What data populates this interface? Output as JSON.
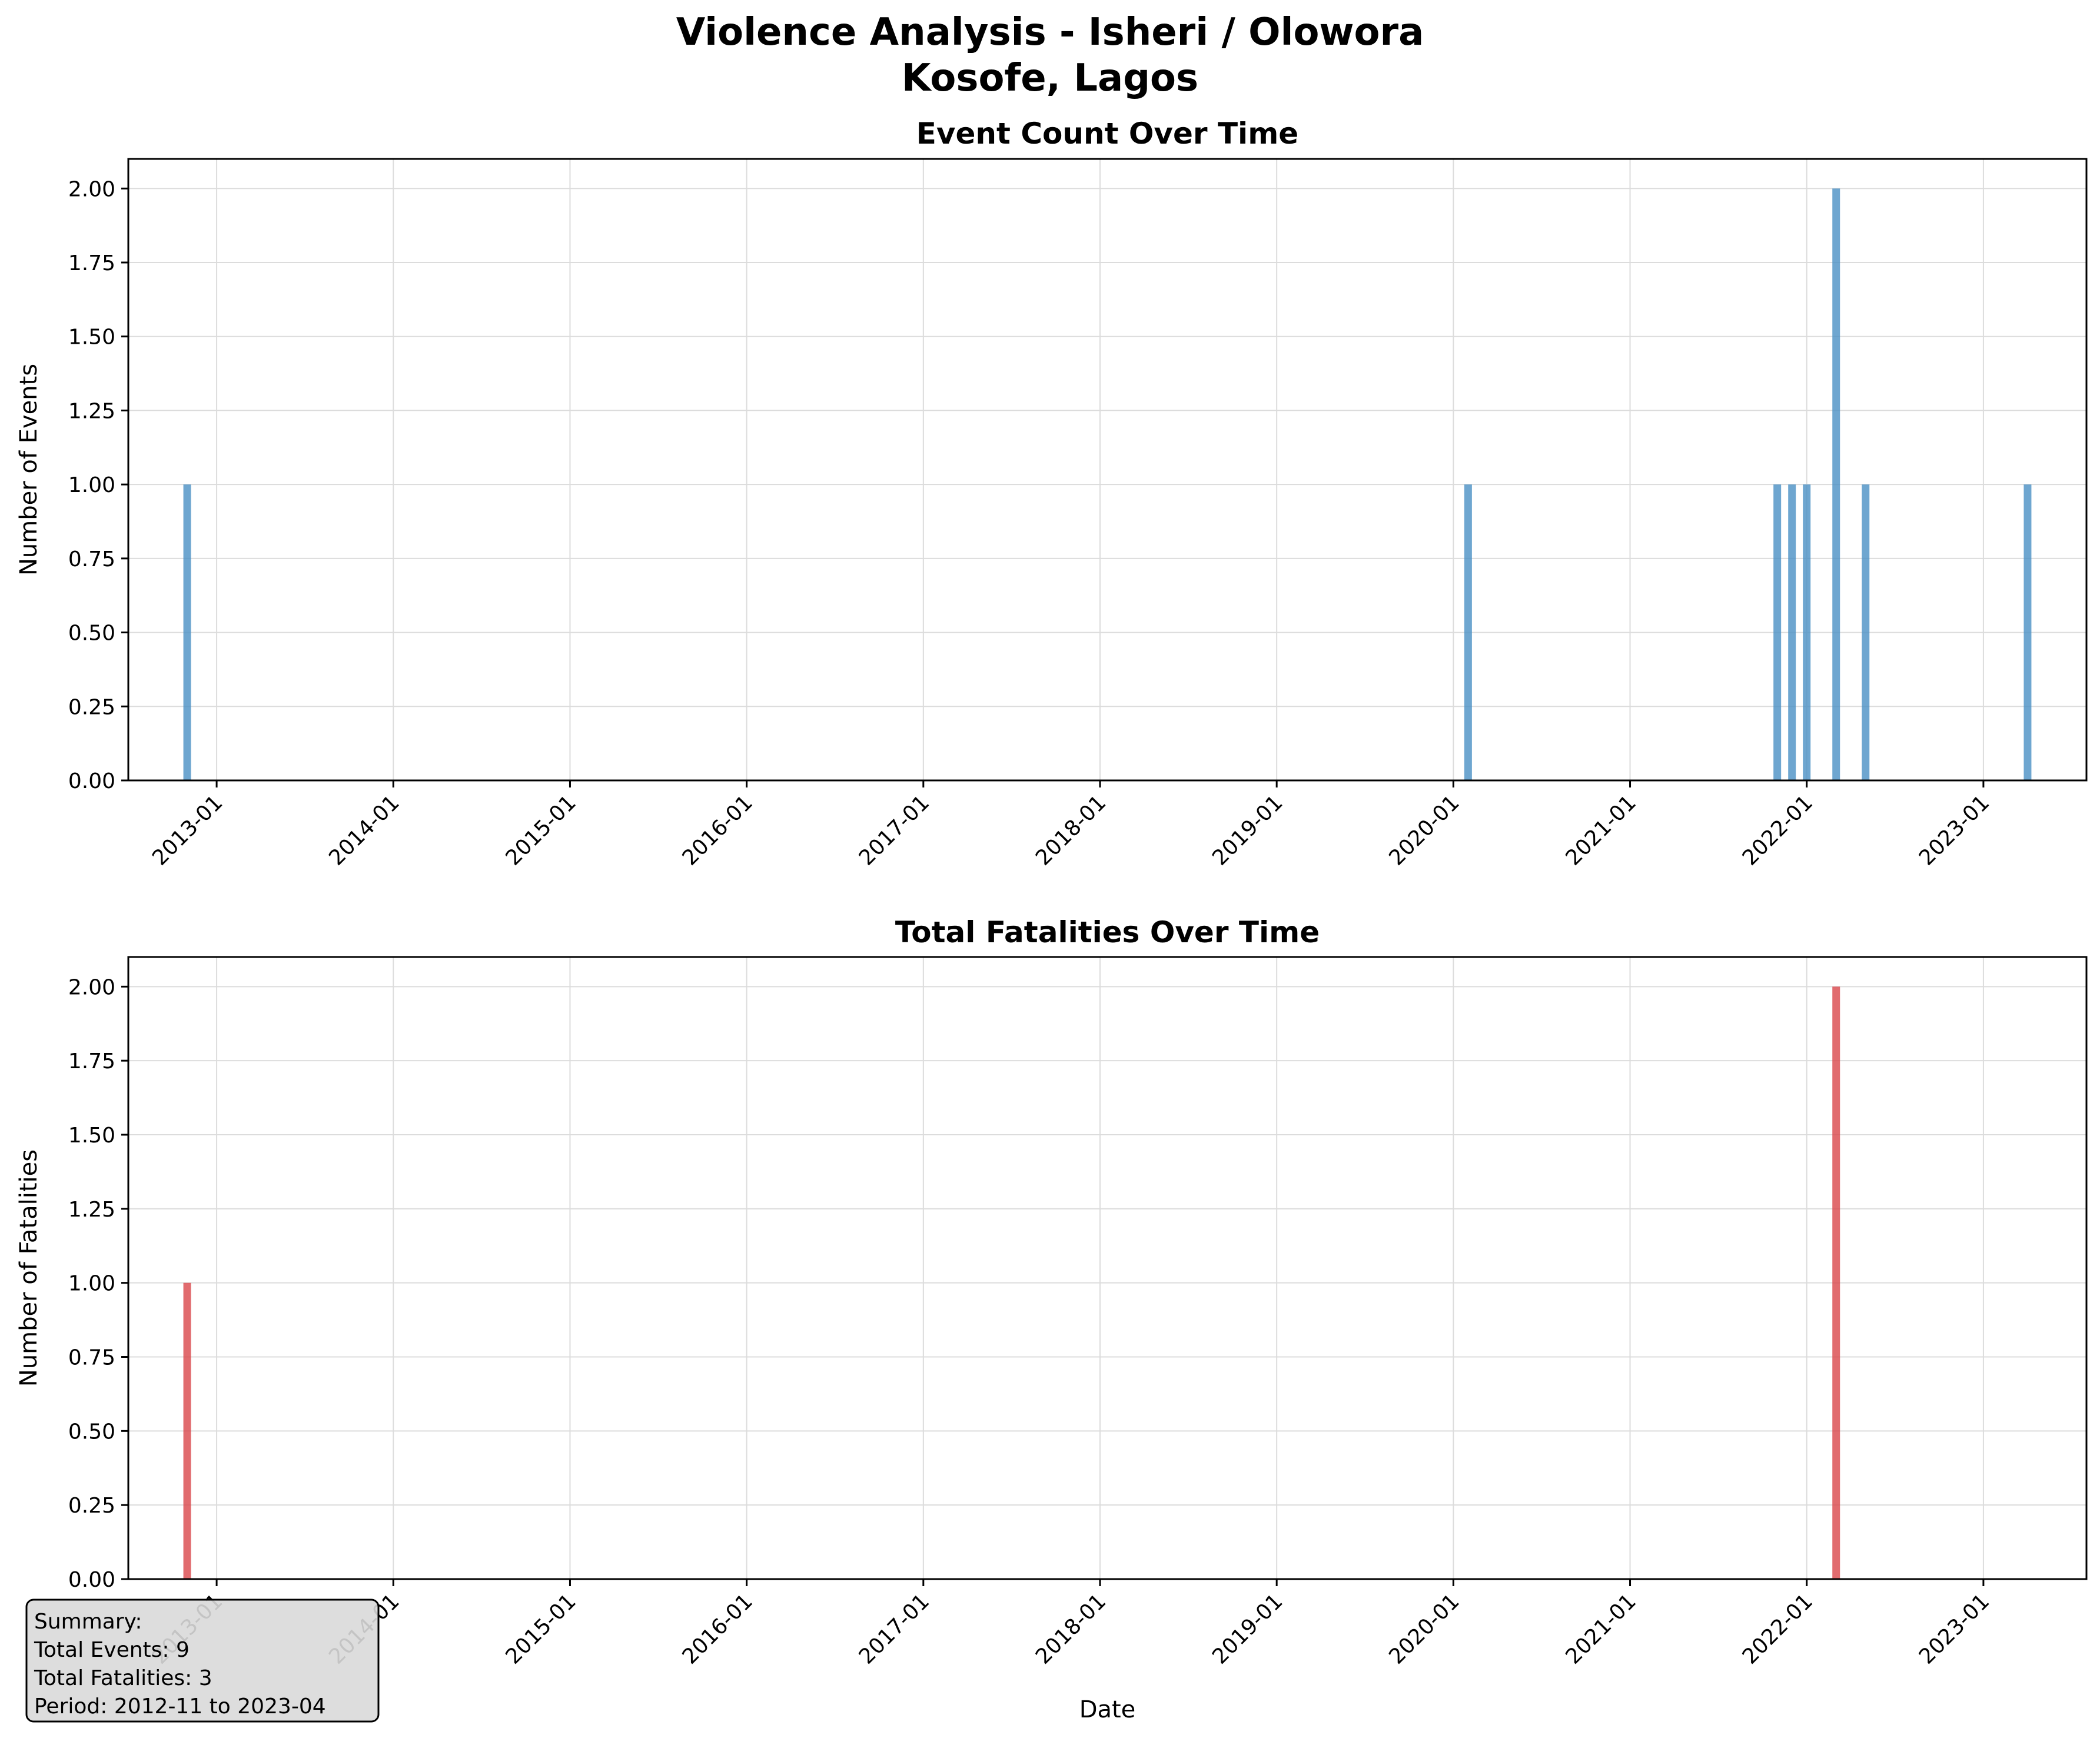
{
  "figure": {
    "title_line1": "Violence Analysis - Isheri / Olowora",
    "title_line2": "Kosofe, Lagos"
  },
  "colors": {
    "events_bar": "#4a90c4",
    "fatalities_bar": "#d9464a",
    "grid": "#dcdcdc",
    "axis": "#000000",
    "summary_bg": "#d9d9d9"
  },
  "chart_data": [
    {
      "type": "bar",
      "title": "Event Count Over Time",
      "xlabel": "",
      "ylabel": "Number of Events",
      "ylim": [
        0,
        2.1
      ],
      "yticks": [
        "0.00",
        "0.25",
        "0.50",
        "0.75",
        "1.00",
        "1.25",
        "1.50",
        "1.75",
        "2.00"
      ],
      "xticks": [
        "2013-01",
        "2014-01",
        "2015-01",
        "2016-01",
        "2017-01",
        "2018-01",
        "2019-01",
        "2020-01",
        "2021-01",
        "2022-01",
        "2023-01"
      ],
      "xlim": [
        "2012-07",
        "2023-08"
      ],
      "grid": true,
      "x": [
        "2012-11",
        "2020-02",
        "2021-11",
        "2021-12",
        "2022-01",
        "2022-03",
        "2022-05",
        "2023-04"
      ],
      "values": [
        1,
        1,
        1,
        1,
        1,
        2,
        1,
        1
      ]
    },
    {
      "type": "bar",
      "title": "Total Fatalities Over Time",
      "xlabel": "Date",
      "ylabel": "Number of Fatalities",
      "ylim": [
        0,
        2.1
      ],
      "yticks": [
        "0.00",
        "0.25",
        "0.50",
        "0.75",
        "1.00",
        "1.25",
        "1.50",
        "1.75",
        "2.00"
      ],
      "xticks": [
        "2013-01",
        "2014-01",
        "2015-01",
        "2016-01",
        "2017-01",
        "2018-01",
        "2019-01",
        "2020-01",
        "2021-01",
        "2022-01",
        "2023-01"
      ],
      "xlim": [
        "2012-07",
        "2023-08"
      ],
      "grid": true,
      "x": [
        "2012-11",
        "2022-03"
      ],
      "values": [
        1,
        2
      ]
    }
  ],
  "summary": {
    "heading": "Summary:",
    "total_events": "Total Events: 9",
    "total_fatalities": "Total Fatalities: 3",
    "period": "Period: 2012-11 to 2023-04"
  }
}
